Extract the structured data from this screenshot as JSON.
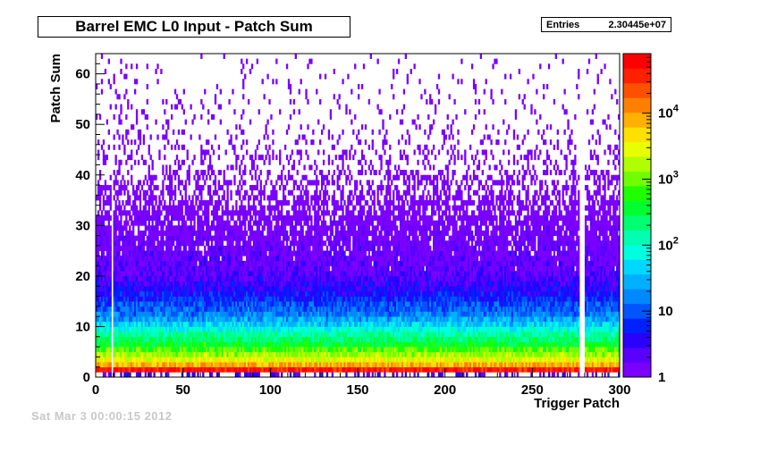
{
  "chart_data": {
    "type": "heatmap",
    "title": "Barrel EMC L0 Input - Patch Sum",
    "stats": {
      "label": "Entries",
      "value": "2.30445e+07"
    },
    "xlabel": "Trigger Patch",
    "ylabel": "Patch Sum",
    "xlim": [
      0,
      300
    ],
    "ylim": [
      0,
      64
    ],
    "zlim": [
      1,
      80000
    ],
    "z_scale": "log",
    "x_ticks": [
      "0",
      "50",
      "100",
      "150",
      "200",
      "250",
      "300"
    ],
    "y_ticks": [
      "0",
      "10",
      "20",
      "30",
      "40",
      "50",
      "60"
    ],
    "z_ticks": [
      {
        "base": "1",
        "exp": ""
      },
      {
        "base": "10",
        "exp": ""
      },
      {
        "base": "10",
        "exp": "2"
      },
      {
        "base": "10",
        "exp": "3"
      },
      {
        "base": "10",
        "exp": "4"
      }
    ],
    "palette": [
      "#7a00ff",
      "#5a00ff",
      "#2a00ff",
      "#0020ff",
      "#0055ff",
      "#0088ff",
      "#00b0ff",
      "#00d8ff",
      "#00ffe0",
      "#00ffb0",
      "#00ff70",
      "#00ff30",
      "#20ff00",
      "#70ff00",
      "#b0ff00",
      "#e8ff00",
      "#ffe000",
      "#ffb000",
      "#ff8000",
      "#ff5000",
      "#ff2000",
      "#ff0000"
    ],
    "grid": false,
    "legend": "color-scale-right",
    "profile_by_patch_sum": [
      {
        "y": 0,
        "level": "sparse"
      },
      {
        "y": 1,
        "value": 50000
      },
      {
        "y": 2,
        "value": 8000
      },
      {
        "y": 3,
        "value": 3000
      },
      {
        "y": 4,
        "value": 1500
      },
      {
        "y": 5,
        "value": 800
      },
      {
        "y": 6,
        "value": 400
      },
      {
        "y": 8,
        "value": 150
      },
      {
        "y": 10,
        "value": 40
      },
      {
        "y": 12,
        "value": 15
      },
      {
        "y": 15,
        "value": 6
      },
      {
        "y": 20,
        "value": 2
      },
      {
        "y": 30,
        "value": 1
      }
    ],
    "empty_columns": [
      9,
      277,
      278,
      279
    ]
  },
  "footer": "Sat Mar  3 00:00:15 2012"
}
